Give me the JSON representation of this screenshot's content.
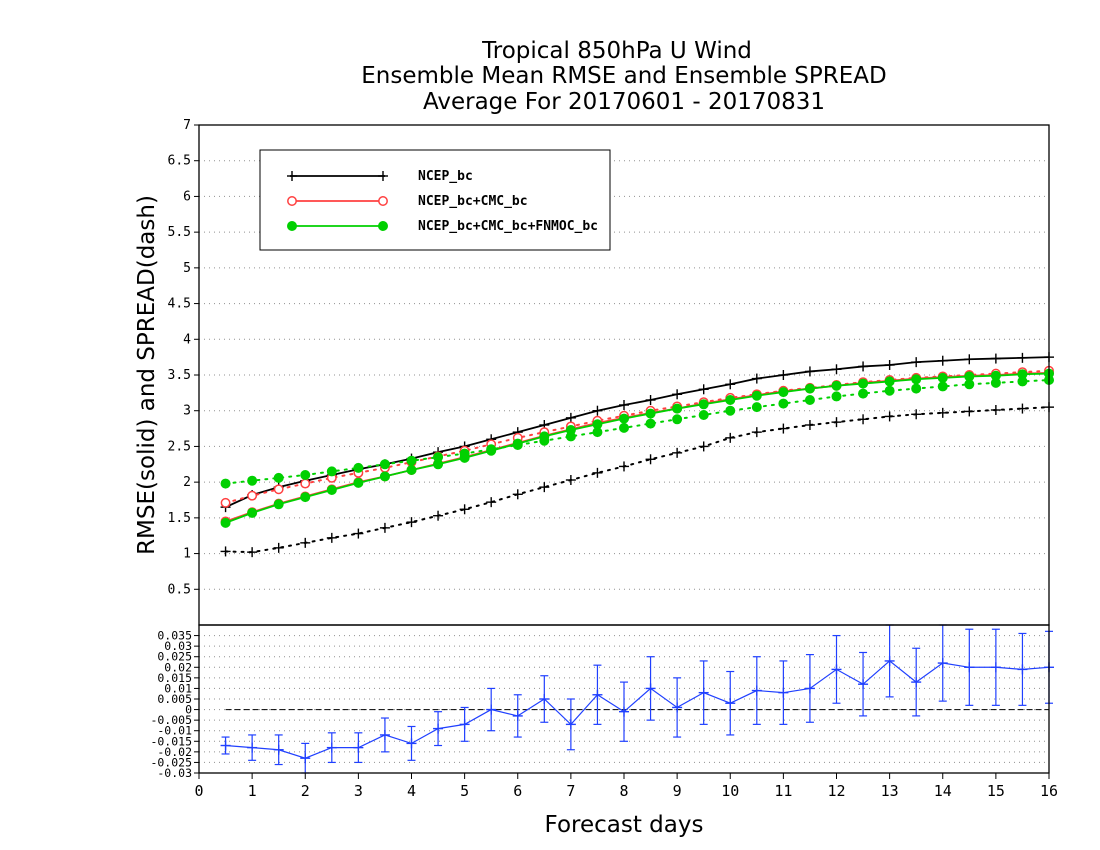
{
  "chart_data": {
    "type": "line",
    "title_lines": [
      "Tropical 850hPa U Wind",
      "Ensemble Mean RMSE and Ensemble SPREAD",
      "Average For 20170601 - 20170831"
    ],
    "xlabel": "Forecast days",
    "ylabel": "RMSE(solid) and SPREAD(dash)",
    "xlim": [
      0,
      16
    ],
    "xticks": [
      "0",
      "1",
      "2",
      "3",
      "4",
      "5",
      "6",
      "7",
      "8",
      "9",
      "10",
      "11",
      "12",
      "13",
      "14",
      "15",
      "16"
    ],
    "top_panel": {
      "ylim": [
        0,
        7
      ],
      "yticks": [
        "0.5",
        "1",
        "1.5",
        "2",
        "2.5",
        "3",
        "3.5",
        "4",
        "4.5",
        "5",
        "5.5",
        "6",
        "6.5",
        "7"
      ],
      "grid": "horizontal dotted",
      "legend_position": "top-left",
      "x": [
        0.5,
        1,
        1.5,
        2,
        2.5,
        3,
        3.5,
        4,
        4.5,
        5,
        5.5,
        6,
        6.5,
        7,
        7.5,
        8,
        8.5,
        9,
        9.5,
        10,
        10.5,
        11,
        11.5,
        12,
        12.5,
        13,
        13.5,
        14,
        14.5,
        15,
        15.5,
        16
      ],
      "series": [
        {
          "name": "NCEP_bc",
          "color": "#000000",
          "marker": "plus",
          "rmse": [
            1.65,
            1.82,
            1.93,
            2.02,
            2.1,
            2.18,
            2.25,
            2.33,
            2.42,
            2.5,
            2.6,
            2.7,
            2.8,
            2.9,
            3.0,
            3.08,
            3.15,
            3.23,
            3.3,
            3.37,
            3.45,
            3.5,
            3.55,
            3.58,
            3.62,
            3.64,
            3.68,
            3.7,
            3.72,
            3.73,
            3.74,
            3.75
          ],
          "spread": [
            1.03,
            1.02,
            1.08,
            1.15,
            1.22,
            1.28,
            1.36,
            1.44,
            1.53,
            1.62,
            1.72,
            1.83,
            1.93,
            2.03,
            2.13,
            2.22,
            2.32,
            2.41,
            2.5,
            2.62,
            2.7,
            2.75,
            2.8,
            2.84,
            2.88,
            2.92,
            2.95,
            2.97,
            2.99,
            3.01,
            3.03,
            3.05
          ]
        },
        {
          "name": "NCEP_bc+CMC_bc",
          "color": "#ff4040",
          "marker": "open-circle",
          "rmse": [
            1.45,
            1.58,
            1.7,
            1.8,
            1.9,
            2.0,
            2.08,
            2.17,
            2.26,
            2.35,
            2.45,
            2.55,
            2.65,
            2.74,
            2.83,
            2.9,
            2.97,
            3.03,
            3.1,
            3.16,
            3.22,
            3.27,
            3.31,
            3.35,
            3.39,
            3.42,
            3.45,
            3.47,
            3.49,
            3.5,
            3.52,
            3.53
          ],
          "spread": [
            1.71,
            1.81,
            1.9,
            1.98,
            2.06,
            2.13,
            2.2,
            2.28,
            2.36,
            2.44,
            2.53,
            2.62,
            2.7,
            2.78,
            2.86,
            2.93,
            3.0,
            3.06,
            3.12,
            3.18,
            3.23,
            3.28,
            3.32,
            3.36,
            3.4,
            3.43,
            3.46,
            3.48,
            3.5,
            3.52,
            3.54,
            3.56
          ]
        },
        {
          "name": "NCEP_bc+CMC_bc+FNMOC_bc",
          "color": "#00d000",
          "marker": "filled-circle",
          "rmse": [
            1.43,
            1.57,
            1.69,
            1.79,
            1.89,
            1.99,
            2.08,
            2.17,
            2.25,
            2.34,
            2.44,
            2.54,
            2.64,
            2.73,
            2.81,
            2.89,
            2.96,
            3.03,
            3.09,
            3.15,
            3.21,
            3.26,
            3.31,
            3.35,
            3.38,
            3.41,
            3.44,
            3.46,
            3.48,
            3.49,
            3.51,
            3.52
          ],
          "spread": [
            1.98,
            2.02,
            2.06,
            2.1,
            2.15,
            2.2,
            2.25,
            2.3,
            2.35,
            2.4,
            2.46,
            2.52,
            2.58,
            2.64,
            2.7,
            2.76,
            2.82,
            2.88,
            2.94,
            3.0,
            3.05,
            3.1,
            3.15,
            3.2,
            3.24,
            3.28,
            3.31,
            3.34,
            3.37,
            3.39,
            3.41,
            3.43
          ]
        }
      ]
    },
    "bottom_panel": {
      "ylim": [
        -0.03,
        0.04
      ],
      "yticks": [
        "-0.03",
        "-0.025",
        "-0.02",
        "-0.015",
        "-0.01",
        "-0.005",
        "0",
        "0.005",
        "0.01",
        "0.015",
        "0.02",
        "0.025",
        "0.03",
        "0.035"
      ],
      "grid": "horizontal dotted",
      "reference_line": 0,
      "color": "#2040ff",
      "x": [
        0.5,
        1,
        1.5,
        2,
        2.5,
        3,
        3.5,
        4,
        4.5,
        5,
        5.5,
        6,
        6.5,
        7,
        7.5,
        8,
        8.5,
        9,
        9.5,
        10,
        10.5,
        11,
        11.5,
        12,
        12.5,
        13,
        13.5,
        14,
        14.5,
        15,
        15.5,
        16
      ],
      "mean": [
        -0.017,
        -0.018,
        -0.019,
        -0.023,
        -0.018,
        -0.018,
        -0.012,
        -0.016,
        -0.009,
        -0.007,
        0.0,
        -0.003,
        0.005,
        -0.007,
        0.007,
        -0.001,
        0.01,
        0.001,
        0.008,
        0.003,
        0.009,
        0.008,
        0.01,
        0.019,
        0.012,
        0.023,
        0.013,
        0.022,
        0.02,
        0.02,
        0.019,
        0.02
      ],
      "error": [
        0.004,
        0.006,
        0.007,
        0.007,
        0.007,
        0.007,
        0.008,
        0.008,
        0.008,
        0.008,
        0.01,
        0.01,
        0.011,
        0.012,
        0.014,
        0.014,
        0.015,
        0.014,
        0.015,
        0.015,
        0.016,
        0.015,
        0.016,
        0.016,
        0.015,
        0.017,
        0.016,
        0.018,
        0.018,
        0.018,
        0.017,
        0.017
      ]
    }
  }
}
